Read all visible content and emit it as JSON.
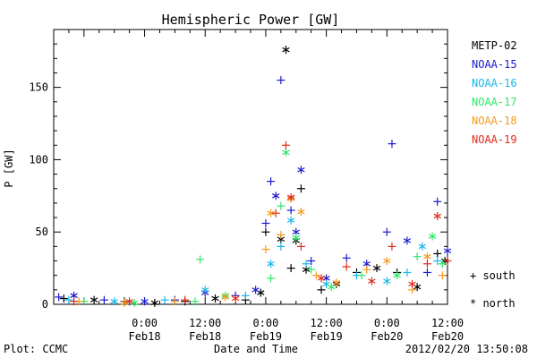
{
  "chart_data": {
    "type": "scatter",
    "title": "Hemispheric Power [GW]",
    "ylabel": "P [GW]",
    "xlabel": "Date and Time",
    "xlim": [
      "2012-02-17T06:00",
      "2012-02-20T12:00"
    ],
    "ylim": [
      0,
      190
    ],
    "yticks": [
      0,
      50,
      100,
      150
    ],
    "xticks": [
      {
        "at": "2012-02-18T00:00",
        "time": "0:00",
        "date": "Feb18"
      },
      {
        "at": "2012-02-18T12:00",
        "time": "12:00",
        "date": "Feb18"
      },
      {
        "at": "2012-02-19T00:00",
        "time": "0:00",
        "date": "Feb19"
      },
      {
        "at": "2012-02-19T12:00",
        "time": "12:00",
        "date": "Feb19"
      },
      {
        "at": "2012-02-20T00:00",
        "time": "0:00",
        "date": "Feb20"
      },
      {
        "at": "2012-02-20T12:00",
        "time": "12:00",
        "date": "Feb20"
      }
    ],
    "grid": false,
    "legend_position": "right",
    "marker_legend": {
      "south": "+",
      "north": "*"
    },
    "marker_legend_labels": {
      "south": "south",
      "north": "north"
    },
    "series": [
      {
        "name": "METP-02",
        "color": "#000000",
        "points": [
          [
            "2012-02-17T08:00",
            4,
            "+"
          ],
          [
            "2012-02-17T14:00",
            3,
            "*"
          ],
          [
            "2012-02-17T20:00",
            2,
            "+"
          ],
          [
            "2012-02-18T02:00",
            1,
            "*"
          ],
          [
            "2012-02-18T08:00",
            2,
            "+"
          ],
          [
            "2012-02-18T14:00",
            4,
            "*"
          ],
          [
            "2012-02-18T20:00",
            3,
            "+"
          ],
          [
            "2012-02-18T23:00",
            8,
            "*"
          ],
          [
            "2012-02-19T00:00",
            50,
            "+"
          ],
          [
            "2012-02-19T03:00",
            45,
            "*"
          ],
          [
            "2012-02-19T04:00",
            176,
            "*"
          ],
          [
            "2012-02-19T05:00",
            25,
            "+"
          ],
          [
            "2012-02-19T06:00",
            44,
            "*"
          ],
          [
            "2012-02-19T07:00",
            80,
            "+"
          ],
          [
            "2012-02-19T08:00",
            24,
            "*"
          ],
          [
            "2012-02-19T11:00",
            10,
            "+"
          ],
          [
            "2012-02-19T14:00",
            14,
            "*"
          ],
          [
            "2012-02-19T18:00",
            22,
            "+"
          ],
          [
            "2012-02-19T22:00",
            25,
            "*"
          ],
          [
            "2012-02-20T02:00",
            22,
            "+"
          ],
          [
            "2012-02-20T06:00",
            12,
            "*"
          ],
          [
            "2012-02-20T10:00",
            35,
            "+"
          ],
          [
            "2012-02-20T11:30",
            30,
            "*"
          ]
        ]
      },
      {
        "name": "NOAA-15",
        "color": "#1a1ad0",
        "points": [
          [
            "2012-02-17T07:00",
            5,
            "+"
          ],
          [
            "2012-02-17T10:00",
            6,
            "*"
          ],
          [
            "2012-02-17T16:00",
            3,
            "+"
          ],
          [
            "2012-02-18T00:00",
            2,
            "*"
          ],
          [
            "2012-02-18T06:00",
            3,
            "+"
          ],
          [
            "2012-02-18T12:00",
            8,
            "*"
          ],
          [
            "2012-02-18T18:00",
            6,
            "+"
          ],
          [
            "2012-02-18T22:00",
            10,
            "*"
          ],
          [
            "2012-02-19T00:00",
            56,
            "+"
          ],
          [
            "2012-02-19T01:00",
            85,
            "+"
          ],
          [
            "2012-02-19T02:00",
            75,
            "*"
          ],
          [
            "2012-02-19T03:00",
            155,
            "+"
          ],
          [
            "2012-02-19T05:00",
            65,
            "+"
          ],
          [
            "2012-02-19T06:00",
            50,
            "*"
          ],
          [
            "2012-02-19T07:00",
            93,
            "*"
          ],
          [
            "2012-02-19T09:00",
            30,
            "+"
          ],
          [
            "2012-02-19T12:00",
            18,
            "*"
          ],
          [
            "2012-02-19T16:00",
            32,
            "+"
          ],
          [
            "2012-02-19T20:00",
            28,
            "*"
          ],
          [
            "2012-02-20T00:00",
            50,
            "+"
          ],
          [
            "2012-02-20T01:00",
            111,
            "+"
          ],
          [
            "2012-02-20T04:00",
            44,
            "*"
          ],
          [
            "2012-02-20T08:00",
            22,
            "+"
          ],
          [
            "2012-02-20T10:00",
            71,
            "+"
          ],
          [
            "2012-02-20T12:00",
            37,
            "*"
          ]
        ]
      },
      {
        "name": "NOAA-16",
        "color": "#18b8e8",
        "points": [
          [
            "2012-02-17T09:00",
            3,
            "+"
          ],
          [
            "2012-02-17T18:00",
            2,
            "*"
          ],
          [
            "2012-02-18T04:00",
            3,
            "+"
          ],
          [
            "2012-02-18T12:00",
            10,
            "*"
          ],
          [
            "2012-02-18T20:00",
            6,
            "+"
          ],
          [
            "2012-02-19T01:00",
            28,
            "*"
          ],
          [
            "2012-02-19T03:00",
            40,
            "+"
          ],
          [
            "2012-02-19T05:00",
            58,
            "*"
          ],
          [
            "2012-02-19T08:00",
            28,
            "+"
          ],
          [
            "2012-02-19T12:00",
            14,
            "*"
          ],
          [
            "2012-02-19T18:00",
            20,
            "+"
          ],
          [
            "2012-02-20T00:00",
            16,
            "*"
          ],
          [
            "2012-02-20T04:00",
            22,
            "+"
          ],
          [
            "2012-02-20T07:00",
            40,
            "*"
          ],
          [
            "2012-02-20T10:00",
            30,
            "+"
          ]
        ]
      },
      {
        "name": "NOAA-17",
        "color": "#2ee86a",
        "points": [
          [
            "2012-02-17T12:00",
            2,
            "+"
          ],
          [
            "2012-02-17T22:00",
            1,
            "*"
          ],
          [
            "2012-02-18T10:00",
            2,
            "+"
          ],
          [
            "2012-02-18T11:00",
            31,
            "+"
          ],
          [
            "2012-02-18T16:00",
            6,
            "*"
          ],
          [
            "2012-02-19T01:00",
            18,
            "+"
          ],
          [
            "2012-02-19T03:00",
            68,
            "+"
          ],
          [
            "2012-02-19T04:00",
            105,
            "*"
          ],
          [
            "2012-02-19T06:00",
            46,
            "*"
          ],
          [
            "2012-02-19T09:00",
            24,
            "+"
          ],
          [
            "2012-02-19T13:00",
            12,
            "*"
          ],
          [
            "2012-02-19T19:00",
            20,
            "+"
          ],
          [
            "2012-02-20T02:00",
            20,
            "*"
          ],
          [
            "2012-02-20T06:00",
            33,
            "+"
          ],
          [
            "2012-02-20T09:00",
            47,
            "*"
          ],
          [
            "2012-02-20T11:00",
            28,
            "+"
          ]
        ]
      },
      {
        "name": "NOAA-18",
        "color": "#f59a1e",
        "points": [
          [
            "2012-02-17T11:00",
            2,
            "+"
          ],
          [
            "2012-02-17T20:00",
            1,
            "*"
          ],
          [
            "2012-02-18T06:00",
            2,
            "+"
          ],
          [
            "2012-02-18T16:00",
            5,
            "*"
          ],
          [
            "2012-02-19T00:00",
            38,
            "+"
          ],
          [
            "2012-02-19T01:00",
            63,
            "*"
          ],
          [
            "2012-02-19T03:00",
            48,
            "+"
          ],
          [
            "2012-02-19T05:00",
            73,
            "*"
          ],
          [
            "2012-02-19T07:00",
            64,
            "*"
          ],
          [
            "2012-02-19T10:00",
            20,
            "+"
          ],
          [
            "2012-02-19T14:00",
            15,
            "*"
          ],
          [
            "2012-02-19T20:00",
            24,
            "+"
          ],
          [
            "2012-02-20T00:00",
            30,
            "*"
          ],
          [
            "2012-02-20T05:00",
            10,
            "+"
          ],
          [
            "2012-02-20T08:00",
            33,
            "*"
          ],
          [
            "2012-02-20T11:00",
            20,
            "+"
          ]
        ]
      },
      {
        "name": "NOAA-19",
        "color": "#e02a1a",
        "points": [
          [
            "2012-02-17T10:00",
            2,
            "+"
          ],
          [
            "2012-02-17T21:00",
            2,
            "*"
          ],
          [
            "2012-02-18T08:00",
            3,
            "+"
          ],
          [
            "2012-02-18T18:00",
            4,
            "*"
          ],
          [
            "2012-02-19T02:00",
            63,
            "+"
          ],
          [
            "2012-02-19T04:00",
            110,
            "+"
          ],
          [
            "2012-02-19T05:00",
            74,
            "*"
          ],
          [
            "2012-02-19T07:00",
            40,
            "+"
          ],
          [
            "2012-02-19T11:00",
            18,
            "*"
          ],
          [
            "2012-02-19T16:00",
            26,
            "+"
          ],
          [
            "2012-02-19T21:00",
            16,
            "*"
          ],
          [
            "2012-02-20T01:00",
            40,
            "+"
          ],
          [
            "2012-02-20T05:00",
            14,
            "*"
          ],
          [
            "2012-02-20T08:00",
            28,
            "+"
          ],
          [
            "2012-02-20T10:00",
            61,
            "*"
          ],
          [
            "2012-02-20T12:00",
            30,
            "+"
          ]
        ]
      }
    ]
  },
  "footer": {
    "left": "Plot: CCMC",
    "center": "Date and Time",
    "right": "2012/02/20 13:50:08"
  }
}
